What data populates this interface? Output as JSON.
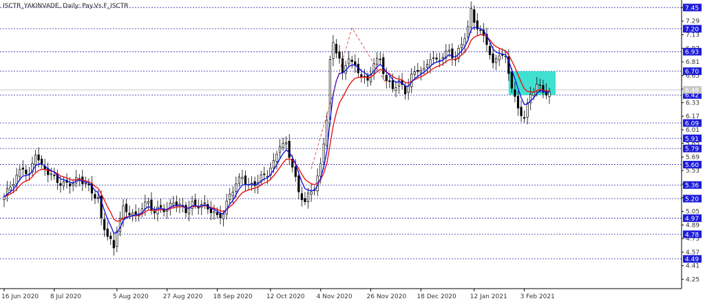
{
  "header": {
    "symbol_text": "ISCTR_YAKINVADE, Daily: Pay.Vs.F_ISCTR"
  },
  "chart_data": {
    "type": "candlestick",
    "ylim": [
      4.14,
      7.49
    ],
    "y_ticks": [
      "7.45",
      "7.29",
      "7.13",
      "6.97",
      "6.81",
      "6.65",
      "6.49",
      "6.33",
      "6.17",
      "6.01",
      "5.85",
      "5.69",
      "5.53",
      "5.37",
      "5.21",
      "5.05",
      "4.89",
      "4.73",
      "4.57",
      "4.41",
      "4.25"
    ],
    "x_ticks": [
      "16 Jun 2020",
      "8 Jul 2020",
      "5 Aug 2020",
      "27 Aug 2020",
      "18 Sep 2020",
      "12 Oct 2020",
      "4 Nov 2020",
      "26 Nov 2020",
      "18 Dec 2020",
      "12 Jan 2021",
      "3 Feb 2021"
    ],
    "x_tick_bars": [
      0,
      16,
      36,
      52,
      68,
      85,
      101,
      117,
      133,
      150,
      166
    ],
    "levels": [
      {
        "value": 7.45,
        "label": "7.45"
      },
      {
        "value": 7.2,
        "label": "7.20"
      },
      {
        "value": 6.93,
        "label": "6.93"
      },
      {
        "value": 6.7,
        "label": "6.70"
      },
      {
        "value": 6.42,
        "label": "6.42"
      },
      {
        "value": 6.09,
        "label": "6.09"
      },
      {
        "value": 5.91,
        "label": "5.91"
      },
      {
        "value": 5.79,
        "label": "5.79"
      },
      {
        "value": 5.6,
        "label": "5.60"
      },
      {
        "value": 5.36,
        "label": "5.36"
      },
      {
        "value": 5.2,
        "label": "5.20"
      },
      {
        "value": 4.97,
        "label": "4.97"
      },
      {
        "value": 4.78,
        "label": "4.78"
      },
      {
        "value": 4.49,
        "label": "4.49"
      }
    ],
    "current_price": {
      "value": 6.48,
      "label": "6.48"
    },
    "zone": {
      "x_start_bar": 161,
      "x_end_bar": 176,
      "y_low": 6.42,
      "y_high": 6.7
    },
    "diagonal": [
      {
        "bar": 98,
        "price": 5.55
      },
      {
        "bar": 111,
        "price": 7.21
      },
      {
        "bar": 122,
        "price": 6.55
      }
    ],
    "anchors": [
      [
        0,
        5.22
      ],
      [
        3,
        5.38
      ],
      [
        6,
        5.58
      ],
      [
        8,
        5.48
      ],
      [
        10,
        5.75
      ],
      [
        12,
        5.55
      ],
      [
        14,
        5.5
      ],
      [
        16,
        5.45
      ],
      [
        18,
        5.4
      ],
      [
        20,
        5.38
      ],
      [
        22,
        5.37
      ],
      [
        24,
        5.42
      ],
      [
        26,
        5.38
      ],
      [
        28,
        5.3
      ],
      [
        30,
        5.2
      ],
      [
        31,
        4.95
      ],
      [
        33,
        4.75
      ],
      [
        35,
        4.6
      ],
      [
        36,
        4.85
      ],
      [
        38,
        5.1
      ],
      [
        40,
        5.05
      ],
      [
        42,
        4.98
      ],
      [
        44,
        5.08
      ],
      [
        46,
        5.15
      ],
      [
        48,
        5.05
      ],
      [
        50,
        5.12
      ],
      [
        52,
        5.05
      ],
      [
        54,
        5.15
      ],
      [
        56,
        5.1
      ],
      [
        58,
        5.08
      ],
      [
        60,
        5.15
      ],
      [
        62,
        5.12
      ],
      [
        64,
        5.1
      ],
      [
        66,
        5.05
      ],
      [
        68,
        5.0
      ],
      [
        70,
        5.05
      ],
      [
        72,
        5.25
      ],
      [
        74,
        5.35
      ],
      [
        76,
        5.45
      ],
      [
        78,
        5.35
      ],
      [
        80,
        5.4
      ],
      [
        82,
        5.45
      ],
      [
        84,
        5.48
      ],
      [
        86,
        5.6
      ],
      [
        88,
        5.85
      ],
      [
        90,
        5.85
      ],
      [
        92,
        5.6
      ],
      [
        94,
        5.25
      ],
      [
        96,
        5.15
      ],
      [
        97,
        5.22
      ],
      [
        99,
        5.35
      ],
      [
        101,
        5.6
      ],
      [
        103,
        6.15
      ],
      [
        104,
        6.8
      ],
      [
        105,
        7.0
      ],
      [
        107,
        6.85
      ],
      [
        108,
        6.65
      ],
      [
        110,
        6.9
      ],
      [
        112,
        6.75
      ],
      [
        114,
        6.65
      ],
      [
        116,
        6.55
      ],
      [
        118,
        6.8
      ],
      [
        120,
        6.85
      ],
      [
        122,
        6.6
      ],
      [
        124,
        6.5
      ],
      [
        126,
        6.55
      ],
      [
        128,
        6.45
      ],
      [
        130,
        6.65
      ],
      [
        132,
        6.75
      ],
      [
        134,
        6.7
      ],
      [
        136,
        6.85
      ],
      [
        138,
        6.8
      ],
      [
        140,
        6.9
      ],
      [
        142,
        6.95
      ],
      [
        144,
        6.85
      ],
      [
        146,
        7.0
      ],
      [
        148,
        7.2
      ],
      [
        149,
        7.4
      ],
      [
        150,
        7.3
      ],
      [
        152,
        7.18
      ],
      [
        154,
        7.05
      ],
      [
        156,
        6.75
      ],
      [
        158,
        6.9
      ],
      [
        160,
        6.85
      ],
      [
        162,
        6.55
      ],
      [
        164,
        6.25
      ],
      [
        166,
        6.15
      ],
      [
        168,
        6.4
      ],
      [
        170,
        6.55
      ],
      [
        172,
        6.48
      ],
      [
        174,
        6.46
      ]
    ],
    "ema_fast_period": 5,
    "ema_slow_period": 10,
    "series_colors": {
      "fast": "#1414e6",
      "slow": "#e61414",
      "bull": "#ffffff",
      "bear": "#000000",
      "zone": "#40e0d0",
      "level": "#2222aa",
      "diagonal": "#d03030"
    }
  }
}
